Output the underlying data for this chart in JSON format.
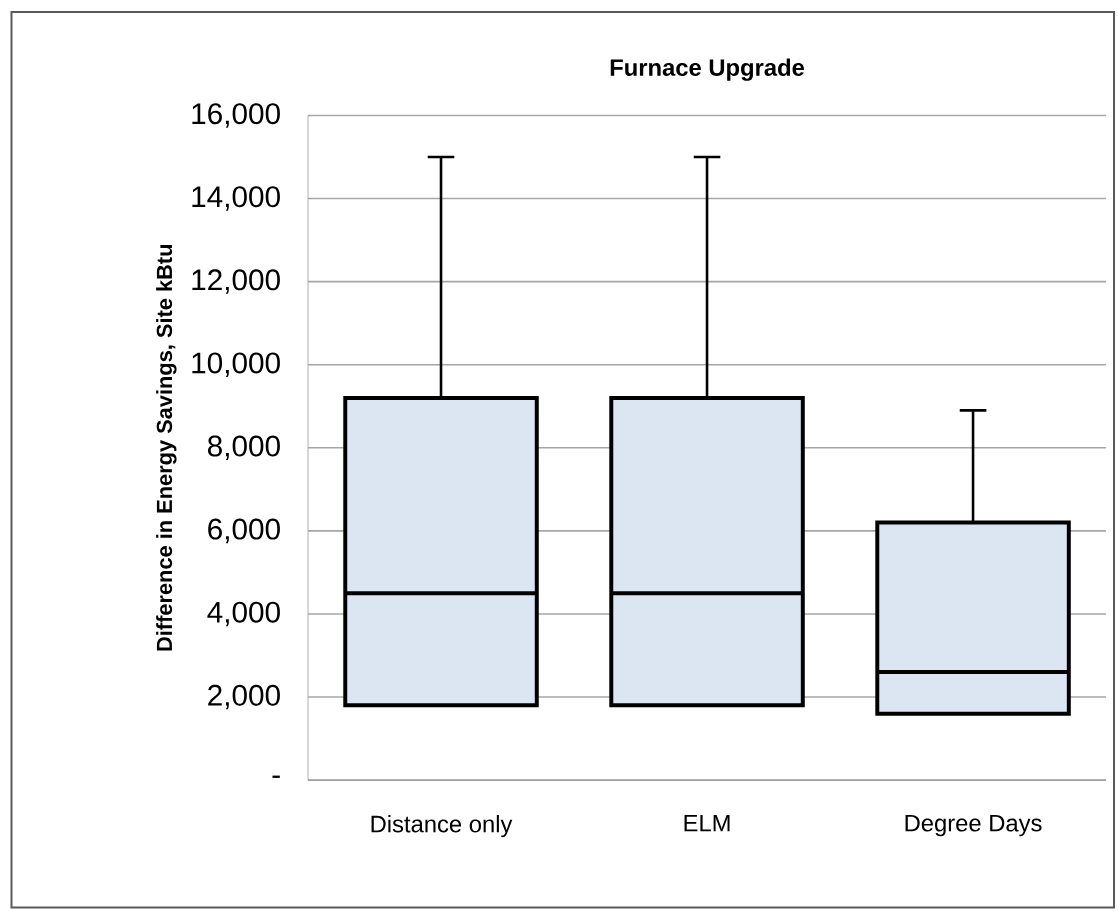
{
  "chart_data": {
    "type": "box",
    "title": "Furnace Upgrade",
    "ylabel": "Difference in Energy Savings, Site kBtu",
    "categories": [
      "Distance only",
      "ELM",
      "Degree Days"
    ],
    "boxes": [
      {
        "low": 1800,
        "q1": 1800,
        "median": 4500,
        "q3": 9200,
        "high": 15000
      },
      {
        "low": 1800,
        "q1": 1800,
        "median": 4500,
        "q3": 9200,
        "high": 15000
      },
      {
        "low": 1600,
        "q1": 1600,
        "median": 2600,
        "q3": 6200,
        "high": 8900
      }
    ],
    "color": "#dce6f2",
    "ylim": [
      0,
      16000
    ],
    "yticks": [
      {
        "value": 0,
        "label": "-"
      },
      {
        "value": 2000,
        "label": "2,000"
      },
      {
        "value": 4000,
        "label": "4,000"
      },
      {
        "value": 6000,
        "label": "6,000"
      },
      {
        "value": 8000,
        "label": "8,000"
      },
      {
        "value": 10000,
        "label": "10,000"
      },
      {
        "value": 12000,
        "label": "12,000"
      },
      {
        "value": 14000,
        "label": "14,000"
      },
      {
        "value": 16000,
        "label": "16,000"
      }
    ],
    "grid": "y"
  }
}
